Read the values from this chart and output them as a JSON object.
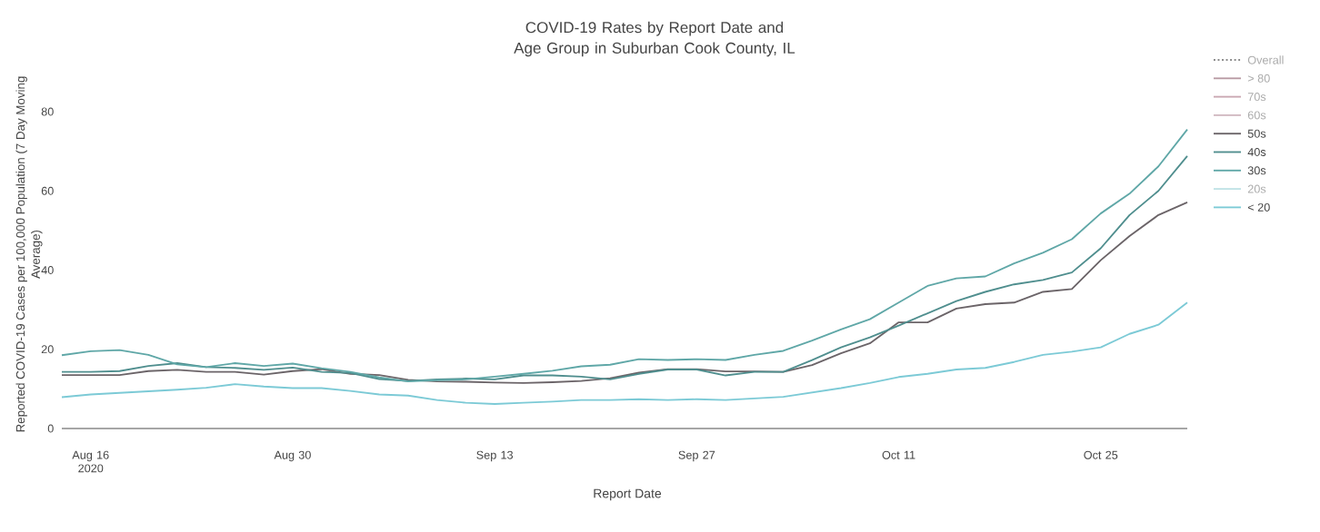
{
  "chart_data": {
    "type": "line",
    "title": "COVID-19 Rates by Report Date and Age Group in Suburban Cook County, IL",
    "xlabel": "Report Date",
    "ylabel": "Reported COVID-19 Cases per 100,000 Population (7 Day Moving Average)",
    "x": [
      "2020-08-14",
      "2020-08-16",
      "2020-08-18",
      "2020-08-20",
      "2020-08-22",
      "2020-08-24",
      "2020-08-26",
      "2020-08-28",
      "2020-08-30",
      "2020-09-01",
      "2020-09-03",
      "2020-09-05",
      "2020-09-07",
      "2020-09-09",
      "2020-09-11",
      "2020-09-13",
      "2020-09-15",
      "2020-09-17",
      "2020-09-19",
      "2020-09-21",
      "2020-09-23",
      "2020-09-25",
      "2020-09-27",
      "2020-09-29",
      "2020-10-01",
      "2020-10-03",
      "2020-10-05",
      "2020-10-07",
      "2020-10-09",
      "2020-10-11",
      "2020-10-13",
      "2020-10-15",
      "2020-10-17",
      "2020-10-19",
      "2020-10-21",
      "2020-10-23",
      "2020-10-25",
      "2020-10-27",
      "2020-10-29",
      "2020-10-31"
    ],
    "series": [
      {
        "name": "Overall",
        "color": "#888888",
        "line_style": "dotted",
        "values": [
          null,
          null,
          null,
          null,
          null,
          null,
          null,
          null,
          null,
          null,
          null,
          null,
          null,
          null,
          null,
          null,
          null,
          null,
          null,
          null,
          null,
          null,
          null,
          null,
          null,
          null,
          null,
          null,
          null,
          null,
          null,
          null,
          null,
          null,
          null,
          null,
          null,
          null,
          null,
          null
        ]
      },
      {
        "name": "> 80",
        "color": "#b89aa3",
        "values": [
          null,
          null,
          null,
          null,
          null,
          null,
          null,
          null,
          null,
          null,
          null,
          null,
          null,
          null,
          null,
          null,
          null,
          null,
          null,
          null,
          null,
          null,
          null,
          null,
          null,
          null,
          null,
          null,
          null,
          null,
          null,
          null,
          null,
          null,
          null,
          null,
          null,
          null,
          null,
          null
        ]
      },
      {
        "name": "70s",
        "color": "#c9a7b1",
        "values": [
          null,
          null,
          null,
          null,
          null,
          null,
          null,
          null,
          null,
          null,
          null,
          null,
          null,
          null,
          null,
          null,
          null,
          null,
          null,
          null,
          null,
          null,
          null,
          null,
          null,
          null,
          null,
          null,
          null,
          null,
          null,
          null,
          null,
          null,
          null,
          null,
          null,
          null,
          null,
          null
        ]
      },
      {
        "name": "60s",
        "color": "#d1b9c0",
        "values": [
          null,
          null,
          null,
          null,
          null,
          null,
          null,
          null,
          null,
          null,
          null,
          null,
          null,
          null,
          null,
          null,
          null,
          null,
          null,
          null,
          null,
          null,
          null,
          null,
          null,
          null,
          null,
          null,
          null,
          null,
          null,
          null,
          null,
          null,
          null,
          null,
          null,
          null,
          null,
          null
        ]
      },
      {
        "name": "50s",
        "color": "#6b6468",
        "values": [
          13.5,
          13.5,
          13.5,
          14.5,
          14.8,
          14.3,
          14.3,
          13.6,
          14.5,
          15,
          13.8,
          13.5,
          12.3,
          11.9,
          11.8,
          11.6,
          11.5,
          11.7,
          12,
          12.7,
          14.1,
          15,
          15,
          14.4,
          14.4,
          14.3,
          16,
          19,
          21.5,
          26.8,
          26.8,
          30.3,
          31.4,
          31.8,
          34.5,
          35.2,
          42.5,
          48.6,
          53.9,
          57.1
        ]
      },
      {
        "name": "40s",
        "color": "#4f8e8e",
        "values": [
          14.3,
          14.3,
          14.5,
          15.8,
          16.5,
          15.5,
          15.3,
          14.8,
          15.4,
          14.3,
          14,
          12.5,
          12,
          12.4,
          12.6,
          12.4,
          13.4,
          13.4,
          13.1,
          12.4,
          13.8,
          14.9,
          14.9,
          13.4,
          14.3,
          14.3,
          17.3,
          20.5,
          23,
          26,
          29.1,
          32.2,
          34.5,
          36.4,
          37.5,
          39.4,
          45.5,
          53.9,
          60,
          68.8
        ]
      },
      {
        "name": "30s",
        "color": "#5fa7a7",
        "values": [
          18.5,
          19.5,
          19.8,
          18.6,
          16.2,
          15.5,
          16.5,
          15.8,
          16.4,
          15.2,
          14.3,
          12.9,
          11.9,
          12.2,
          12.4,
          13.1,
          13.8,
          14.6,
          15.7,
          16.1,
          17.5,
          17.3,
          17.5,
          17.3,
          18.6,
          19.6,
          22.2,
          25,
          27.6,
          31.8,
          36,
          37.9,
          38.4,
          41.7,
          44.4,
          47.8,
          54.3,
          59.3,
          66.2,
          75.5
        ]
      },
      {
        "name": "20s",
        "color": "#bfe2e6",
        "values": [
          null,
          null,
          null,
          null,
          null,
          null,
          null,
          null,
          null,
          null,
          null,
          null,
          null,
          null,
          null,
          null,
          null,
          null,
          null,
          null,
          null,
          null,
          null,
          null,
          null,
          null,
          null,
          null,
          null,
          null,
          null,
          null,
          null,
          null,
          null,
          null,
          null,
          null,
          null,
          null
        ]
      },
      {
        "name": "< 20",
        "color": "#7ccad6",
        "values": [
          7.9,
          8.6,
          9,
          9.4,
          9.8,
          10.3,
          11.2,
          10.6,
          10.2,
          10.2,
          9.5,
          8.6,
          8.3,
          7.2,
          6.5,
          6.2,
          6.5,
          6.8,
          7.2,
          7.2,
          7.4,
          7.2,
          7.4,
          7.2,
          7.6,
          8,
          9.1,
          10.2,
          11.5,
          13,
          13.8,
          14.9,
          15.3,
          16.8,
          18.6,
          19.4,
          20.5,
          23.9,
          26.2,
          31.8
        ]
      }
    ],
    "xlim": [
      "2020-08-14",
      "2020-10-31"
    ],
    "xticks": [
      {
        "value": "2020-08-16",
        "label": "Aug 16 2020"
      },
      {
        "value": "2020-08-30",
        "label": "Aug 30"
      },
      {
        "value": "2020-09-13",
        "label": "Sep 13"
      },
      {
        "value": "2020-09-27",
        "label": "Sep 27"
      },
      {
        "value": "2020-10-11",
        "label": "Oct 11"
      },
      {
        "value": "2020-10-25",
        "label": "Oct 25"
      }
    ],
    "ylim": [
      0,
      80
    ],
    "yticks": [
      0,
      20,
      40,
      60,
      80
    ],
    "grid": false,
    "legend": "top right"
  }
}
